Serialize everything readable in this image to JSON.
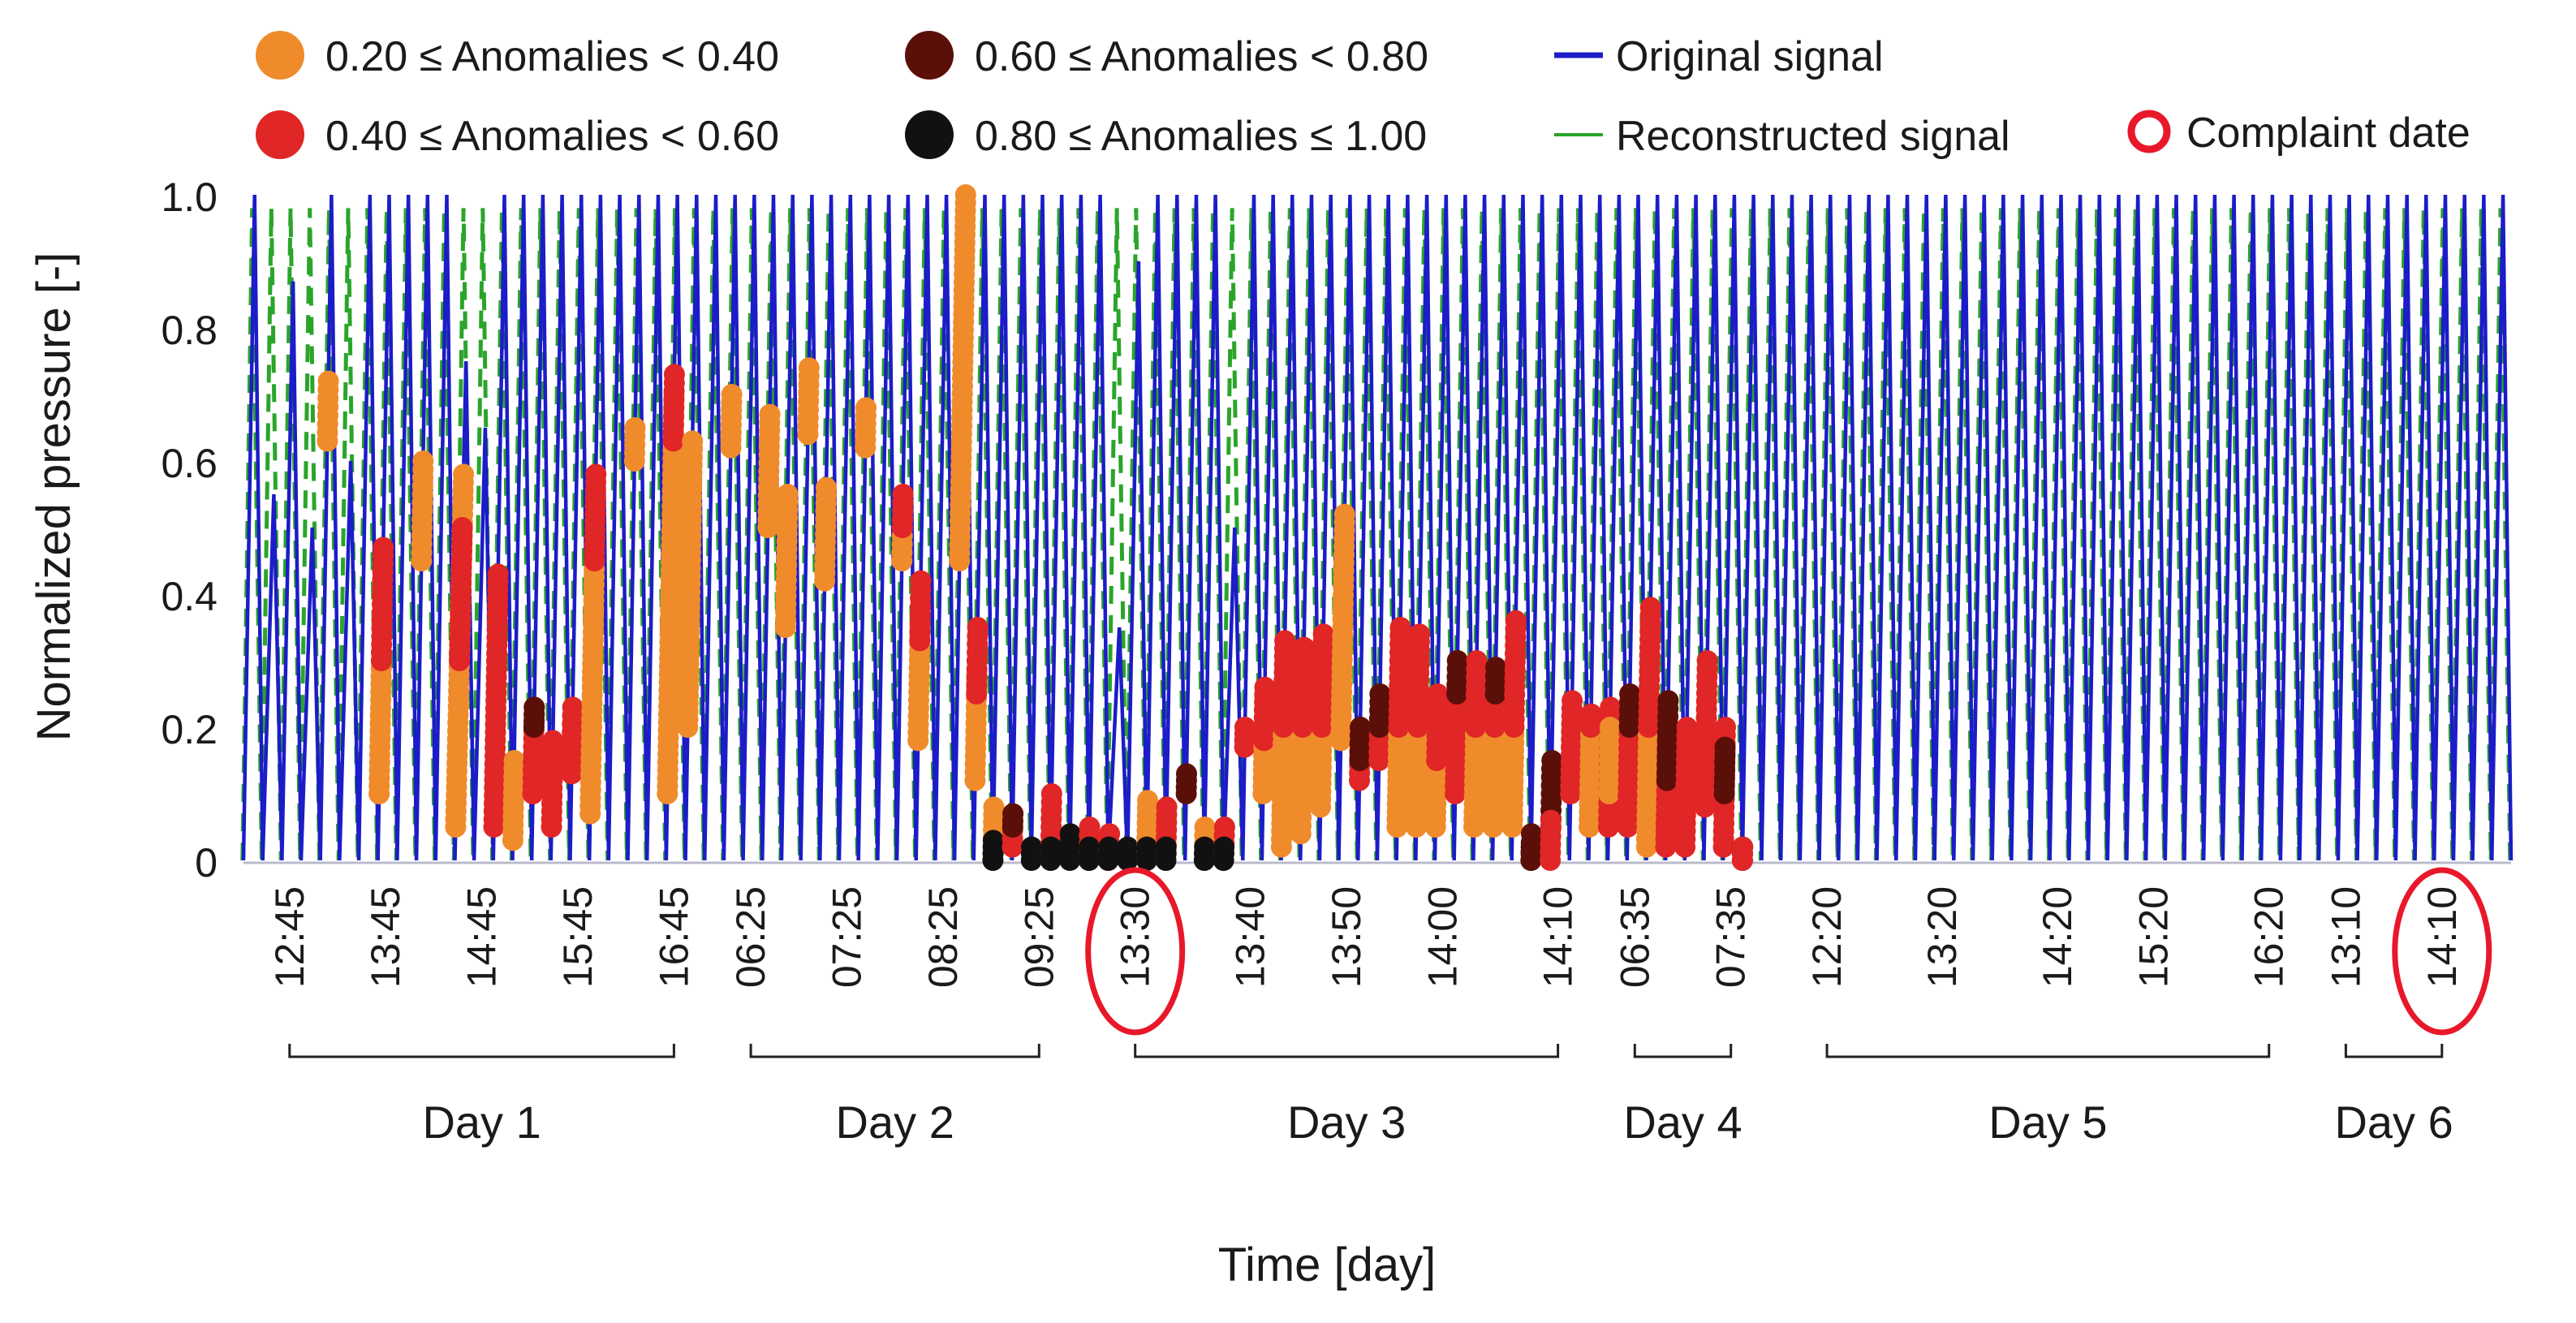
{
  "chart_data": {
    "type": "line",
    "title": "",
    "xlabel": "Time [day]",
    "ylabel": "Normalized pressure [-]",
    "ylim": [
      0,
      1.0
    ],
    "y_ticks": [
      "1.0",
      "0.8",
      "0.6",
      "0.4",
      "0.2",
      "0"
    ],
    "y_tick_values": [
      1.0,
      0.8,
      0.6,
      0.4,
      0.2,
      0.0
    ],
    "x_ticks": [
      "12:45",
      "13:45",
      "14:45",
      "15:45",
      "16:45",
      "06:25",
      "07:25",
      "08:25",
      "09:25",
      "13:30",
      "13:40",
      "13:50",
      "14:00",
      "14:10",
      "06:35",
      "07:35",
      "12:20",
      "13:20",
      "14:20",
      "15:20",
      "16:20",
      "13:10",
      "14:10"
    ],
    "x_tick_index": [
      2,
      7,
      12,
      17,
      22,
      26,
      31,
      36,
      41,
      46,
      52,
      57,
      62,
      68,
      72,
      77,
      82,
      88,
      94,
      99,
      105,
      109,
      114
    ],
    "cycles_total": 118,
    "days": [
      {
        "label": "Day 1",
        "from_tick": 0,
        "to_tick": 4
      },
      {
        "label": "Day 2",
        "from_tick": 5,
        "to_tick": 8
      },
      {
        "label": "Day 3",
        "from_tick": 9,
        "to_tick": 13
      },
      {
        "label": "Day 4",
        "from_tick": 14,
        "to_tick": 15
      },
      {
        "label": "Day 5",
        "from_tick": 16,
        "to_tick": 20
      },
      {
        "label": "Day 6",
        "from_tick": 21,
        "to_tick": 22
      }
    ],
    "complaint_ticks": [
      9,
      22
    ],
    "colors": {
      "original": "#1c1cc8",
      "reconstructed": "#2aa52a",
      "bin1": "#f08b2c",
      "bin2": "#e02626",
      "bin3": "#5a0f08",
      "bin4": "#111111",
      "complaint": "#e8182a",
      "axis": "#bbbbcc"
    },
    "legend": [
      {
        "label": "0.20 ≤ Anomalies < 0.40",
        "kind": "marker",
        "color": "#f08b2c"
      },
      {
        "label": "0.40 ≤ Anomalies < 0.60",
        "kind": "marker",
        "color": "#e02626"
      },
      {
        "label": "0.60 ≤ Anomalies < 0.80",
        "kind": "marker",
        "color": "#5a0f08"
      },
      {
        "label": "0.80 ≤ Anomalies ≤ 1.00",
        "kind": "marker",
        "color": "#111111"
      },
      {
        "label": "Original signal",
        "kind": "line",
        "color": "#1c1cc8"
      },
      {
        "label": "Reconstructed signal",
        "kind": "dashed",
        "color": "#2aa52a"
      },
      {
        "label": "Complaint date",
        "kind": "ring",
        "color": "#e8182a"
      }
    ],
    "series": [
      {
        "name": "Original signal",
        "values": "sawtooth cycles between 0 and 1.0 (cycle peaks below)"
      },
      {
        "name": "Reconstructed signal",
        "values": "dashed sawtooth overlapping original, 0 to 1.0"
      }
    ],
    "peaks_original": [
      1.0,
      0.55,
      0.87,
      0.5,
      1.0,
      0.6,
      1.0,
      1.0,
      1.0,
      1.0,
      1.0,
      0.75,
      0.65,
      1.0,
      1.0,
      1.0,
      1.0,
      1.0,
      1.0,
      1.0,
      1.0,
      1.0,
      1.0,
      1.0,
      1.0,
      1.0,
      1.0,
      1.0,
      1.0,
      1.0,
      1.0,
      1.0,
      1.0,
      1.0,
      1.0,
      1.0,
      1.0,
      1.0,
      1.0,
      1.0,
      1.0,
      1.0,
      1.0,
      1.0,
      1.0,
      0.35,
      0.9,
      1.0,
      1.0,
      1.0,
      1.0,
      0.5,
      1.0,
      1.0,
      1.0,
      1.0,
      1.0,
      1.0,
      1.0,
      1.0,
      1.0,
      1.0,
      1.0,
      1.0,
      1.0,
      1.0,
      1.0,
      1.0,
      1.0,
      1.0,
      1.0,
      1.0,
      1.0,
      1.0,
      1.0,
      1.0,
      1.0,
      1.0,
      1.0,
      1.0,
      1.0,
      1.0,
      1.0,
      1.0,
      1.0,
      1.0,
      1.0,
      1.0,
      1.0,
      1.0,
      1.0,
      1.0,
      1.0,
      1.0,
      1.0,
      1.0,
      1.0,
      1.0,
      1.0,
      1.0,
      1.0,
      1.0,
      1.0,
      1.0,
      1.0,
      1.0,
      1.0,
      1.0,
      1.0,
      1.0,
      1.0,
      1.0,
      1.0,
      1.0,
      1.0,
      1.0,
      1.0,
      1.0
    ],
    "anomaly_segments": [
      {
        "cycle": 4,
        "y0": 0.63,
        "y1": 0.72,
        "bin": 1
      },
      {
        "cycle": 7,
        "y0": 0.1,
        "y1": 0.3,
        "bin": 1
      },
      {
        "cycle": 7,
        "y0": 0.3,
        "y1": 0.47,
        "bin": 2
      },
      {
        "cycle": 9,
        "y0": 0.45,
        "y1": 0.6,
        "bin": 1
      },
      {
        "cycle": 11,
        "y0": 0.05,
        "y1": 0.58,
        "bin": 1
      },
      {
        "cycle": 11,
        "y0": 0.3,
        "y1": 0.5,
        "bin": 2
      },
      {
        "cycle": 13,
        "y0": 0.05,
        "y1": 0.43,
        "bin": 2
      },
      {
        "cycle": 14,
        "y0": 0.03,
        "y1": 0.15,
        "bin": 1
      },
      {
        "cycle": 15,
        "y0": 0.1,
        "y1": 0.23,
        "bin": 2
      },
      {
        "cycle": 15,
        "y0": 0.2,
        "y1": 0.23,
        "bin": 3
      },
      {
        "cycle": 16,
        "y0": 0.05,
        "y1": 0.18,
        "bin": 2
      },
      {
        "cycle": 17,
        "y0": 0.13,
        "y1": 0.23,
        "bin": 2
      },
      {
        "cycle": 18,
        "y0": 0.07,
        "y1": 0.45,
        "bin": 1
      },
      {
        "cycle": 18,
        "y0": 0.45,
        "y1": 0.58,
        "bin": 2
      },
      {
        "cycle": 20,
        "y0": 0.6,
        "y1": 0.65,
        "bin": 1
      },
      {
        "cycle": 22,
        "y0": 0.1,
        "y1": 0.7,
        "bin": 1
      },
      {
        "cycle": 22,
        "y0": 0.63,
        "y1": 0.73,
        "bin": 2
      },
      {
        "cycle": 23,
        "y0": 0.2,
        "y1": 0.63,
        "bin": 1
      },
      {
        "cycle": 25,
        "y0": 0.62,
        "y1": 0.7,
        "bin": 1
      },
      {
        "cycle": 27,
        "y0": 0.5,
        "y1": 0.67,
        "bin": 1
      },
      {
        "cycle": 28,
        "y0": 0.35,
        "y1": 0.55,
        "bin": 1
      },
      {
        "cycle": 29,
        "y0": 0.64,
        "y1": 0.74,
        "bin": 1
      },
      {
        "cycle": 30,
        "y0": 0.42,
        "y1": 0.56,
        "bin": 1
      },
      {
        "cycle": 32,
        "y0": 0.62,
        "y1": 0.68,
        "bin": 1
      },
      {
        "cycle": 34,
        "y0": 0.45,
        "y1": 0.55,
        "bin": 1
      },
      {
        "cycle": 34,
        "y0": 0.5,
        "y1": 0.55,
        "bin": 2
      },
      {
        "cycle": 35,
        "y0": 0.18,
        "y1": 0.35,
        "bin": 1
      },
      {
        "cycle": 35,
        "y0": 0.33,
        "y1": 0.42,
        "bin": 2
      },
      {
        "cycle": 37,
        "y0": 0.45,
        "y1": 1.0,
        "bin": 1
      },
      {
        "cycle": 38,
        "y0": 0.12,
        "y1": 0.28,
        "bin": 1
      },
      {
        "cycle": 38,
        "y0": 0.25,
        "y1": 0.35,
        "bin": 2
      },
      {
        "cycle": 39,
        "y0": 0.0,
        "y1": 0.08,
        "bin": 1
      },
      {
        "cycle": 39,
        "y0": 0.0,
        "y1": 0.03,
        "bin": 4
      },
      {
        "cycle": 40,
        "y0": 0.02,
        "y1": 0.07,
        "bin": 2
      },
      {
        "cycle": 40,
        "y0": 0.05,
        "y1": 0.07,
        "bin": 3
      },
      {
        "cycle": 41,
        "y0": 0.0,
        "y1": 0.02,
        "bin": 4
      },
      {
        "cycle": 42,
        "y0": 0.0,
        "y1": 0.1,
        "bin": 2
      },
      {
        "cycle": 42,
        "y0": 0.0,
        "y1": 0.02,
        "bin": 4
      },
      {
        "cycle": 43,
        "y0": 0.0,
        "y1": 0.04,
        "bin": 4
      },
      {
        "cycle": 44,
        "y0": 0.0,
        "y1": 0.05,
        "bin": 2
      },
      {
        "cycle": 44,
        "y0": 0.0,
        "y1": 0.02,
        "bin": 4
      },
      {
        "cycle": 45,
        "y0": 0.0,
        "y1": 0.04,
        "bin": 2
      },
      {
        "cycle": 45,
        "y0": 0.0,
        "y1": 0.02,
        "bin": 4
      },
      {
        "cycle": 46,
        "y0": 0.0,
        "y1": 0.02,
        "bin": 4
      },
      {
        "cycle": 47,
        "y0": 0.0,
        "y1": 0.09,
        "bin": 1
      },
      {
        "cycle": 47,
        "y0": 0.0,
        "y1": 0.02,
        "bin": 4
      },
      {
        "cycle": 48,
        "y0": 0.0,
        "y1": 0.08,
        "bin": 2
      },
      {
        "cycle": 48,
        "y0": 0.0,
        "y1": 0.02,
        "bin": 4
      },
      {
        "cycle": 49,
        "y0": 0.1,
        "y1": 0.13,
        "bin": 3
      },
      {
        "cycle": 50,
        "y0": 0.0,
        "y1": 0.05,
        "bin": 1
      },
      {
        "cycle": 50,
        "y0": 0.0,
        "y1": 0.02,
        "bin": 4
      },
      {
        "cycle": 51,
        "y0": 0.0,
        "y1": 0.05,
        "bin": 2
      },
      {
        "cycle": 51,
        "y0": 0.0,
        "y1": 0.02,
        "bin": 4
      },
      {
        "cycle": 52,
        "y0": 0.17,
        "y1": 0.2,
        "bin": 2
      },
      {
        "cycle": 53,
        "y0": 0.1,
        "y1": 0.25,
        "bin": 1
      },
      {
        "cycle": 53,
        "y0": 0.18,
        "y1": 0.26,
        "bin": 2
      },
      {
        "cycle": 54,
        "y0": 0.02,
        "y1": 0.2,
        "bin": 1
      },
      {
        "cycle": 54,
        "y0": 0.2,
        "y1": 0.33,
        "bin": 2
      },
      {
        "cycle": 55,
        "y0": 0.04,
        "y1": 0.2,
        "bin": 1
      },
      {
        "cycle": 55,
        "y0": 0.2,
        "y1": 0.32,
        "bin": 2
      },
      {
        "cycle": 56,
        "y0": 0.08,
        "y1": 0.2,
        "bin": 1
      },
      {
        "cycle": 56,
        "y0": 0.2,
        "y1": 0.34,
        "bin": 2
      },
      {
        "cycle": 57,
        "y0": 0.18,
        "y1": 0.52,
        "bin": 1
      },
      {
        "cycle": 58,
        "y0": 0.12,
        "y1": 0.2,
        "bin": 2
      },
      {
        "cycle": 58,
        "y0": 0.15,
        "y1": 0.2,
        "bin": 3
      },
      {
        "cycle": 59,
        "y0": 0.15,
        "y1": 0.25,
        "bin": 2
      },
      {
        "cycle": 59,
        "y0": 0.2,
        "y1": 0.25,
        "bin": 3
      },
      {
        "cycle": 60,
        "y0": 0.05,
        "y1": 0.2,
        "bin": 1
      },
      {
        "cycle": 60,
        "y0": 0.2,
        "y1": 0.35,
        "bin": 2
      },
      {
        "cycle": 61,
        "y0": 0.05,
        "y1": 0.2,
        "bin": 1
      },
      {
        "cycle": 61,
        "y0": 0.2,
        "y1": 0.34,
        "bin": 2
      },
      {
        "cycle": 62,
        "y0": 0.05,
        "y1": 0.2,
        "bin": 1
      },
      {
        "cycle": 62,
        "y0": 0.15,
        "y1": 0.25,
        "bin": 2
      },
      {
        "cycle": 63,
        "y0": 0.1,
        "y1": 0.3,
        "bin": 2
      },
      {
        "cycle": 63,
        "y0": 0.25,
        "y1": 0.3,
        "bin": 3
      },
      {
        "cycle": 64,
        "y0": 0.05,
        "y1": 0.2,
        "bin": 1
      },
      {
        "cycle": 64,
        "y0": 0.2,
        "y1": 0.3,
        "bin": 2
      },
      {
        "cycle": 65,
        "y0": 0.05,
        "y1": 0.2,
        "bin": 1
      },
      {
        "cycle": 65,
        "y0": 0.2,
        "y1": 0.29,
        "bin": 2
      },
      {
        "cycle": 65,
        "y0": 0.25,
        "y1": 0.29,
        "bin": 3
      },
      {
        "cycle": 66,
        "y0": 0.05,
        "y1": 0.2,
        "bin": 1
      },
      {
        "cycle": 66,
        "y0": 0.2,
        "y1": 0.36,
        "bin": 2
      },
      {
        "cycle": 67,
        "y0": 0.0,
        "y1": 0.02,
        "bin": 4
      },
      {
        "cycle": 67,
        "y0": 0.0,
        "y1": 0.04,
        "bin": 3
      },
      {
        "cycle": 68,
        "y0": 0.05,
        "y1": 0.15,
        "bin": 3
      },
      {
        "cycle": 68,
        "y0": 0.0,
        "y1": 0.06,
        "bin": 2
      },
      {
        "cycle": 69,
        "y0": 0.1,
        "y1": 0.24,
        "bin": 2
      },
      {
        "cycle": 70,
        "y0": 0.05,
        "y1": 0.2,
        "bin": 1
      },
      {
        "cycle": 70,
        "y0": 0.2,
        "y1": 0.22,
        "bin": 2
      },
      {
        "cycle": 71,
        "y0": 0.05,
        "y1": 0.23,
        "bin": 2
      },
      {
        "cycle": 71,
        "y0": 0.1,
        "y1": 0.2,
        "bin": 1
      },
      {
        "cycle": 72,
        "y0": 0.05,
        "y1": 0.25,
        "bin": 2
      },
      {
        "cycle": 72,
        "y0": 0.2,
        "y1": 0.25,
        "bin": 3
      },
      {
        "cycle": 73,
        "y0": 0.02,
        "y1": 0.2,
        "bin": 1
      },
      {
        "cycle": 73,
        "y0": 0.2,
        "y1": 0.38,
        "bin": 2
      },
      {
        "cycle": 74,
        "y0": 0.02,
        "y1": 0.2,
        "bin": 2
      },
      {
        "cycle": 74,
        "y0": 0.12,
        "y1": 0.24,
        "bin": 3
      },
      {
        "cycle": 75,
        "y0": 0.02,
        "y1": 0.2,
        "bin": 2
      },
      {
        "cycle": 76,
        "y0": 0.08,
        "y1": 0.3,
        "bin": 2
      },
      {
        "cycle": 77,
        "y0": 0.02,
        "y1": 0.2,
        "bin": 2
      },
      {
        "cycle": 77,
        "y0": 0.1,
        "y1": 0.17,
        "bin": 3
      },
      {
        "cycle": 78,
        "y0": 0.0,
        "y1": 0.02,
        "bin": 4
      },
      {
        "cycle": 78,
        "y0": 0.0,
        "y1": 0.02,
        "bin": 2
      }
    ]
  }
}
